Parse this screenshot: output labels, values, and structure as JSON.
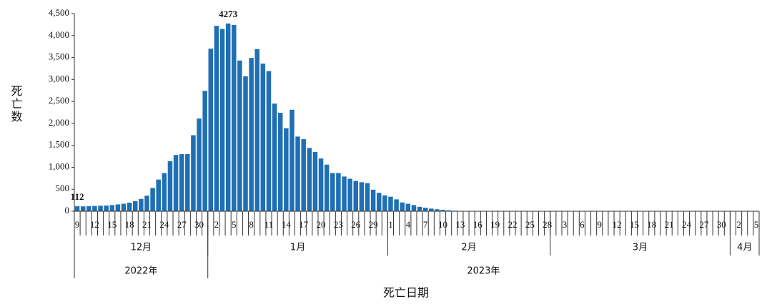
{
  "chart_data": {
    "type": "bar",
    "xlabel": "死亡日期",
    "ylabel": "死亡数",
    "color": "#1f6fb4",
    "categories": [
      "9",
      null,
      null,
      "12",
      null,
      null,
      "15",
      null,
      null,
      "18",
      null,
      null,
      "21",
      null,
      null,
      "24",
      null,
      null,
      "27",
      null,
      null,
      "30",
      null,
      null,
      "2",
      null,
      null,
      "5",
      null,
      null,
      "8",
      null,
      null,
      "11",
      null,
      null,
      "14",
      null,
      null,
      "17",
      null,
      null,
      "20",
      null,
      null,
      "23",
      null,
      null,
      "26",
      null,
      null,
      "29",
      null,
      null,
      "1",
      null,
      null,
      "4",
      null,
      null,
      "7",
      null,
      null,
      "10",
      null,
      null,
      "13",
      null,
      null,
      "16",
      null,
      null,
      "19",
      null,
      null,
      "22",
      null,
      null,
      "25",
      null,
      null,
      "28",
      null,
      null,
      "3",
      null,
      null,
      "6",
      null,
      null,
      "9",
      null,
      null,
      "12",
      null,
      null,
      "15",
      null,
      null,
      "18",
      null,
      null,
      "21",
      null,
      null,
      "24",
      null,
      null,
      "27",
      null,
      null,
      "30",
      null,
      null,
      "2",
      null,
      null,
      "5"
    ],
    "values": [
      112,
      110,
      115,
      120,
      125,
      130,
      140,
      155,
      170,
      195,
      230,
      280,
      355,
      530,
      720,
      870,
      1140,
      1280,
      1300,
      1300,
      1730,
      2110,
      2740,
      3700,
      4220,
      4150,
      4273,
      4240,
      3430,
      3070,
      3490,
      3690,
      3360,
      3190,
      2450,
      2240,
      1890,
      2310,
      1700,
      1640,
      1440,
      1350,
      1200,
      1060,
      870,
      870,
      790,
      740,
      690,
      660,
      640,
      490,
      420,
      360,
      330,
      270,
      200,
      170,
      140,
      100,
      80,
      60,
      45,
      30,
      20,
      12,
      8,
      6,
      5,
      4,
      3,
      3,
      2,
      2,
      2,
      1,
      1,
      1,
      1,
      1,
      1,
      1,
      1,
      1,
      1,
      1,
      1,
      1,
      1,
      1,
      1,
      1,
      0,
      0,
      0,
      0,
      0,
      0,
      0,
      0,
      0,
      0,
      0,
      0,
      0,
      0,
      0,
      0,
      0,
      0,
      0,
      0,
      0,
      0,
      0,
      0,
      0,
      0
    ],
    "value_labels": [
      "112",
      null,
      null,
      null,
      null,
      null,
      null,
      null,
      null,
      null,
      null,
      null,
      null,
      null,
      null,
      null,
      null,
      null,
      null,
      null,
      null,
      null,
      null,
      null,
      null,
      null,
      "4273",
      null,
      null,
      null,
      null,
      null,
      null,
      null,
      null,
      null,
      null,
      null,
      null,
      null,
      null,
      null,
      null,
      null,
      null,
      null,
      null,
      null,
      null,
      null,
      null,
      null,
      null,
      null,
      null,
      null,
      null,
      null,
      null,
      null,
      null,
      null,
      null,
      null,
      null,
      null,
      null,
      null,
      null,
      null,
      null,
      null,
      null,
      null,
      null,
      null,
      null,
      null,
      null,
      null,
      null,
      null,
      null,
      null,
      null,
      null,
      null,
      null,
      null,
      null,
      null,
      null,
      null,
      null,
      null,
      null,
      null,
      null,
      null,
      null,
      null,
      null,
      null,
      null,
      null,
      null,
      null,
      null,
      null,
      null,
      null,
      null,
      null,
      null,
      null,
      null,
      null,
      null
    ],
    "month_groups": [
      {
        "label": "12月",
        "span": 23
      },
      {
        "label": "1月",
        "span": 31
      },
      {
        "label": "2月",
        "span": 28
      },
      {
        "label": "3月",
        "span": 31
      },
      {
        "label": "4月",
        "span": 5
      }
    ],
    "year_groups": [
      {
        "label": "2022年",
        "span": 23
      },
      {
        "label": "2023年",
        "span": 95
      }
    ],
    "ylim": [
      0,
      4500
    ],
    "yticks": [
      0,
      500,
      {
        "value": 1000,
        "label": "1,000"
      },
      {
        "value": 1500,
        "label": "1,500"
      },
      {
        "value": 2000,
        "label": "2,000"
      },
      {
        "value": 2500,
        "label": "2,500"
      },
      {
        "value": 3000,
        "label": "3,000"
      },
      {
        "value": 3500,
        "label": "3,500"
      },
      {
        "value": 4000,
        "label": "4,000"
      },
      {
        "value": 4500,
        "label": "4,500"
      }
    ]
  }
}
